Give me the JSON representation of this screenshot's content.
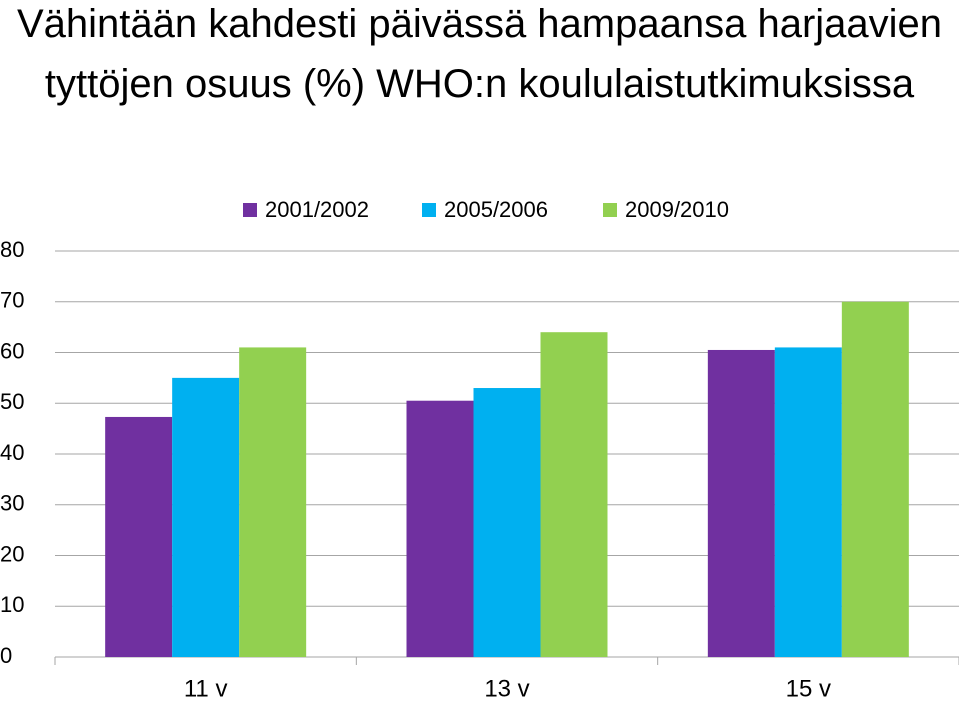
{
  "chart_data": {
    "type": "bar",
    "title": "Vähintään kahdesti päivässä hampaansa harjaavien tyttöjen osuus (%) WHO:n koululaistutkimuksissa",
    "categories": [
      "11 v",
      "13 v",
      "15 v"
    ],
    "series": [
      {
        "name": "2001/2002",
        "color": "#7030a0",
        "values": [
          47.3,
          50.5,
          60.5
        ]
      },
      {
        "name": "2005/2006",
        "color": "#00b0f0",
        "values": [
          55,
          53,
          61
        ]
      },
      {
        "name": "2009/2010",
        "color": "#92d050",
        "values": [
          61,
          64,
          70
        ]
      }
    ],
    "ylim": [
      0,
      80
    ],
    "yticks": [
      0,
      10,
      20,
      30,
      40,
      50,
      60,
      70,
      80
    ],
    "grid": true,
    "legend": "top"
  }
}
